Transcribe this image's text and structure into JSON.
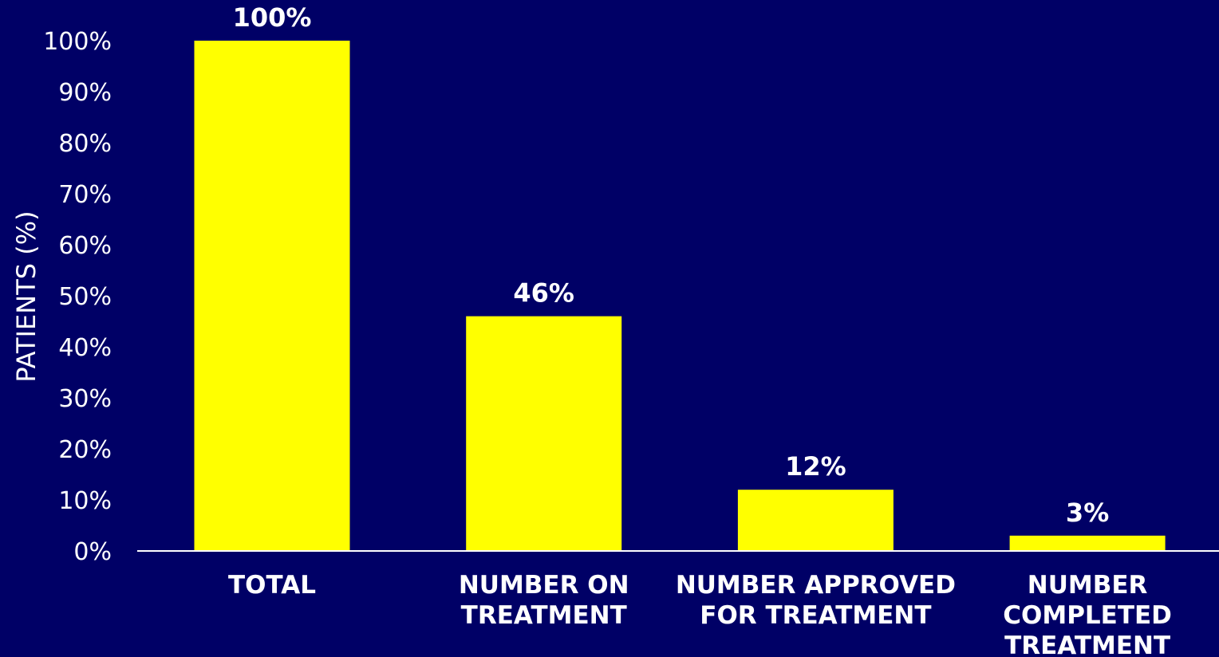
{
  "chart_data": {
    "type": "bar",
    "title": "",
    "xlabel": "",
    "ylabel": "PATIENTS (%)",
    "ylim": [
      0,
      100
    ],
    "yticks": [
      "0%",
      "10%",
      "20%",
      "30%",
      "40%",
      "50%",
      "60%",
      "70%",
      "80%",
      "90%",
      "100%"
    ],
    "categories": [
      [
        "TOTAL"
      ],
      [
        "NUMBER ON",
        "TREATMENT"
      ],
      [
        "NUMBER APPROVED",
        "FOR TREATMENT"
      ],
      [
        "NUMBER",
        "COMPLETED",
        "TREATMENT"
      ]
    ],
    "values": [
      100,
      46,
      12,
      3
    ],
    "value_labels": [
      "100%",
      "46%",
      "12%",
      "3%"
    ],
    "grid": false,
    "legend": "none",
    "colors": {
      "background": "#000066",
      "bar": "#ffff00",
      "text": "#ffffff",
      "axis": "#ffffff"
    }
  }
}
